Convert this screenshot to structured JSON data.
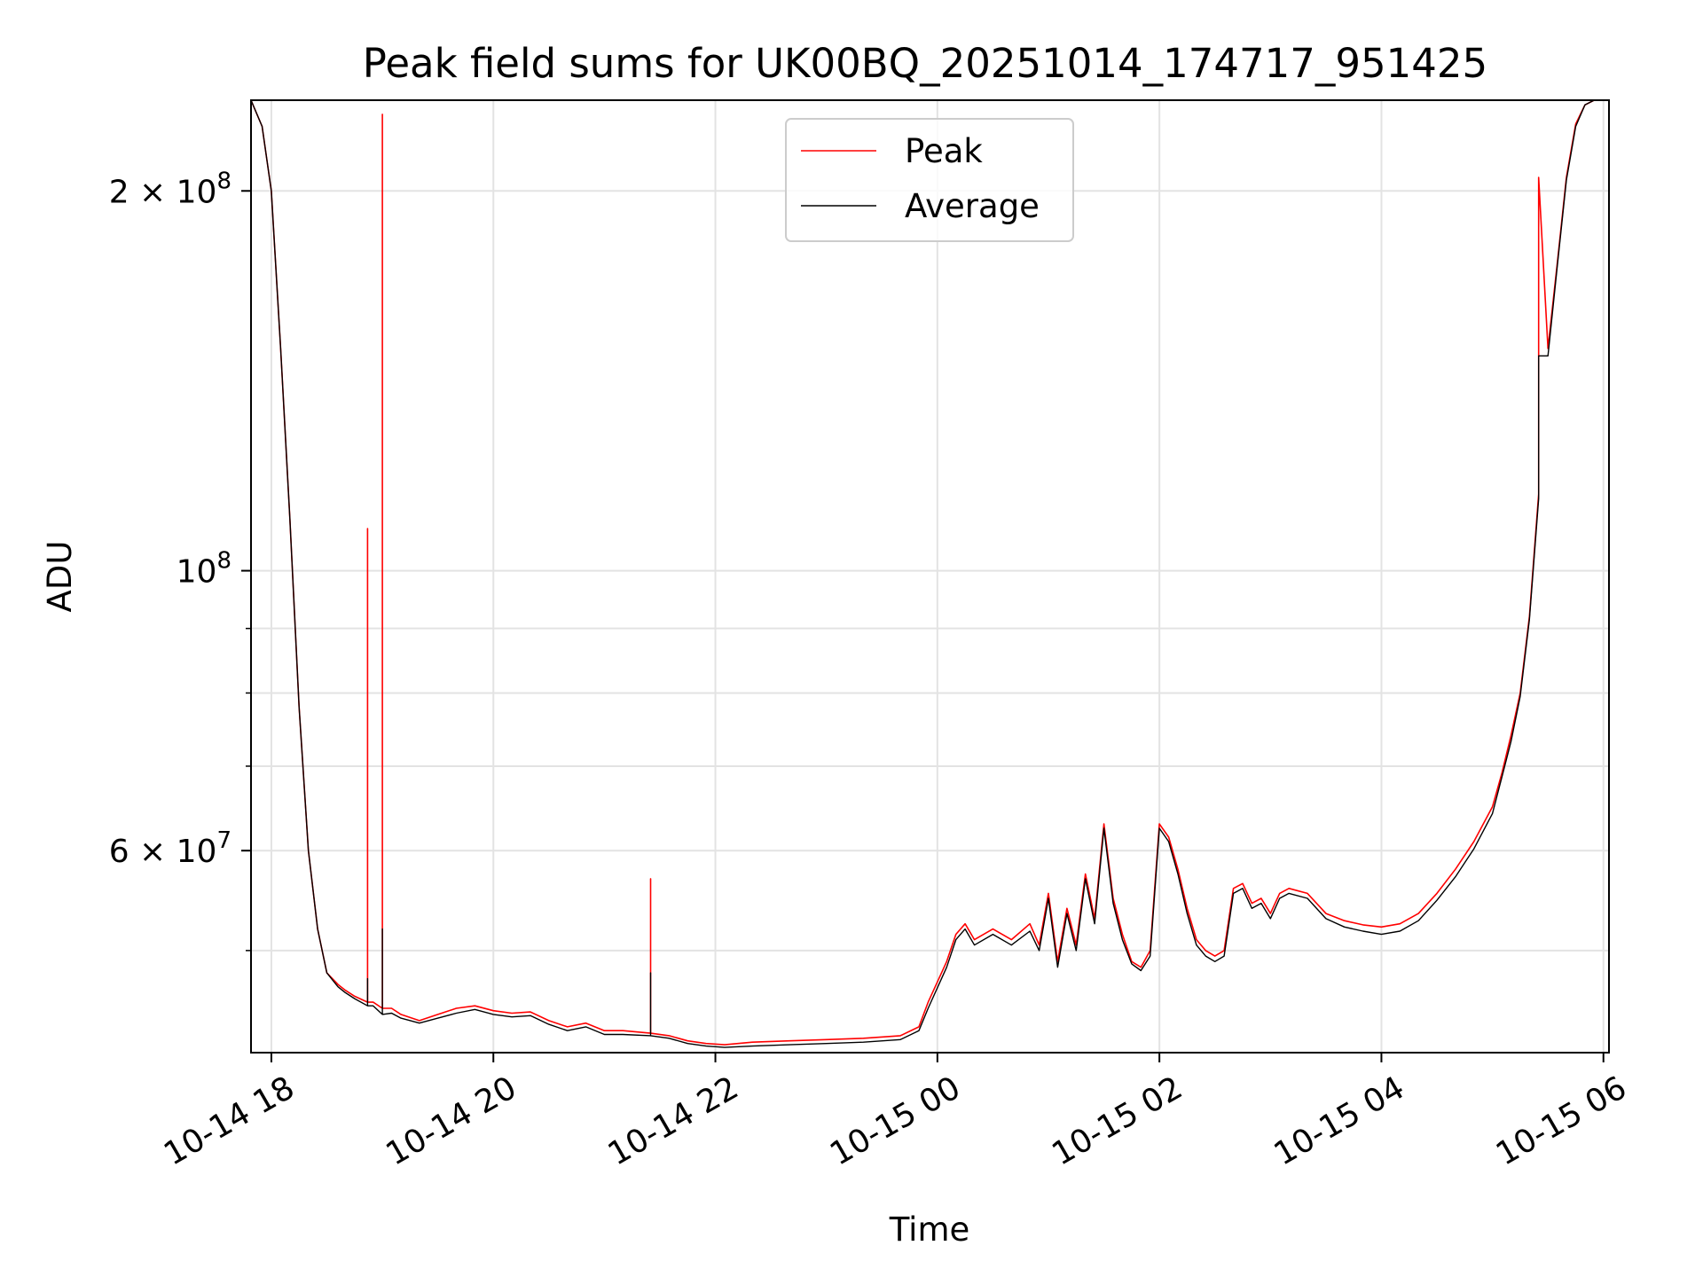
{
  "chart_data": {
    "type": "line",
    "title": "Peak field sums for UK00BQ_20251014_174717_951425",
    "xlabel": "Time",
    "ylabel": "ADU",
    "y_scale": "log",
    "xlim": [
      "2025-10-14 17:49",
      "2025-10-15 06:03"
    ],
    "ylim": [
      41500000,
      236000000
    ],
    "grid": true,
    "legend_position": "top-center",
    "x_ticks": [
      {
        "value": "2025-10-14 18:00",
        "label": "10-14 18"
      },
      {
        "value": "2025-10-14 20:00",
        "label": "10-14 20"
      },
      {
        "value": "2025-10-14 22:00",
        "label": "10-14 22"
      },
      {
        "value": "2025-10-15 00:00",
        "label": "10-15 00"
      },
      {
        "value": "2025-10-15 02:00",
        "label": "10-15 02"
      },
      {
        "value": "2025-10-15 04:00",
        "label": "10-15 04"
      },
      {
        "value": "2025-10-15 06:00",
        "label": "10-15 06"
      }
    ],
    "y_ticks": [
      {
        "value": 200000000,
        "mantissa": "2 × 10",
        "exp": "8"
      },
      {
        "value": 100000000,
        "mantissa": "10",
        "exp": "8"
      },
      {
        "value": 60000000,
        "mantissa": "6 × 10",
        "exp": "7"
      }
    ],
    "y_minor_ticks": [
      50000000,
      70000000,
      80000000,
      90000000
    ],
    "series": [
      {
        "name": "Peak",
        "color": "#ff0000",
        "x": [
          "2025-10-14 17:49",
          "2025-10-14 17:55",
          "2025-10-14 18:00",
          "2025-10-14 18:05",
          "2025-10-14 18:10",
          "2025-10-14 18:15",
          "2025-10-14 18:20",
          "2025-10-14 18:25",
          "2025-10-14 18:30",
          "2025-10-14 18:36",
          "2025-10-14 18:40",
          "2025-10-14 18:45",
          "2025-10-14 18:52",
          "2025-10-14 18:52",
          "2025-10-14 18:52",
          "2025-10-14 18:55",
          "2025-10-14 19:00",
          "2025-10-14 19:00",
          "2025-10-14 19:00",
          "2025-10-14 19:05",
          "2025-10-14 19:10",
          "2025-10-14 19:20",
          "2025-10-14 19:30",
          "2025-10-14 19:40",
          "2025-10-14 19:50",
          "2025-10-14 20:00",
          "2025-10-14 20:10",
          "2025-10-14 20:20",
          "2025-10-14 20:30",
          "2025-10-14 20:40",
          "2025-10-14 20:50",
          "2025-10-14 21:00",
          "2025-10-14 21:10",
          "2025-10-14 21:25",
          "2025-10-14 21:25",
          "2025-10-14 21:25",
          "2025-10-14 21:35",
          "2025-10-14 21:45",
          "2025-10-14 21:55",
          "2025-10-14 22:05",
          "2025-10-14 22:20",
          "2025-10-14 22:40",
          "2025-10-14 23:00",
          "2025-10-14 23:20",
          "2025-10-14 23:40",
          "2025-10-14 23:50",
          "2025-10-14 23:55",
          "2025-10-15 00:05",
          "2025-10-15 00:10",
          "2025-10-15 00:15",
          "2025-10-15 00:20",
          "2025-10-15 00:30",
          "2025-10-15 00:40",
          "2025-10-15 00:50",
          "2025-10-15 00:55",
          "2025-10-15 01:00",
          "2025-10-15 01:05",
          "2025-10-15 01:10",
          "2025-10-15 01:15",
          "2025-10-15 01:20",
          "2025-10-15 01:25",
          "2025-10-15 01:30",
          "2025-10-15 01:35",
          "2025-10-15 01:40",
          "2025-10-15 01:45",
          "2025-10-15 01:50",
          "2025-10-15 01:55",
          "2025-10-15 02:00",
          "2025-10-15 02:05",
          "2025-10-15 02:10",
          "2025-10-15 02:15",
          "2025-10-15 02:20",
          "2025-10-15 02:25",
          "2025-10-15 02:30",
          "2025-10-15 02:35",
          "2025-10-15 02:40",
          "2025-10-15 02:45",
          "2025-10-15 02:50",
          "2025-10-15 02:55",
          "2025-10-15 03:00",
          "2025-10-15 03:05",
          "2025-10-15 03:10",
          "2025-10-15 03:20",
          "2025-10-15 03:30",
          "2025-10-15 03:40",
          "2025-10-15 03:50",
          "2025-10-15 04:00",
          "2025-10-15 04:10",
          "2025-10-15 04:20",
          "2025-10-15 04:30",
          "2025-10-15 04:40",
          "2025-10-15 04:50",
          "2025-10-15 05:00",
          "2025-10-15 05:05",
          "2025-10-15 05:10",
          "2025-10-15 05:15",
          "2025-10-15 05:20",
          "2025-10-15 05:25",
          "2025-10-15 05:25",
          "2025-10-15 05:25",
          "2025-10-15 05:30",
          "2025-10-15 05:35",
          "2025-10-15 05:40",
          "2025-10-15 05:45",
          "2025-10-15 05:50",
          "2025-10-15 05:55",
          "2025-10-15 06:03"
        ],
        "values": [
          236000000,
          225000000,
          200000000,
          150000000,
          110000000,
          78000000,
          60000000,
          52000000,
          48000000,
          47000000,
          46500000,
          46000000,
          45500000,
          108000000,
          45500000,
          45500000,
          45000000,
          230000000,
          45000000,
          45000000,
          44500000,
          44000000,
          44500000,
          45000000,
          45200000,
          44800000,
          44600000,
          44700000,
          44000000,
          43500000,
          43800000,
          43200000,
          43200000,
          43000000,
          57000000,
          43000000,
          42800000,
          42400000,
          42200000,
          42100000,
          42300000,
          42400000,
          42500000,
          42600000,
          42800000,
          43500000,
          45500000,
          49000000,
          51500000,
          52500000,
          51000000,
          52000000,
          51000000,
          52500000,
          50500000,
          55500000,
          49000000,
          54000000,
          50500000,
          57500000,
          53000000,
          63000000,
          55000000,
          51500000,
          49000000,
          48500000,
          50000000,
          63000000,
          61500000,
          58000000,
          54000000,
          51000000,
          50000000,
          49500000,
          50000000,
          56000000,
          56500000,
          54500000,
          55000000,
          53500000,
          55500000,
          56000000,
          55500000,
          53500000,
          52800000,
          52400000,
          52200000,
          52500000,
          53500000,
          55500000,
          58000000,
          61000000,
          65000000,
          69000000,
          74000000,
          80000000,
          92000000,
          115000000,
          150000000,
          205000000,
          150000000,
          175000000,
          205000000,
          226000000,
          234000000,
          236000000,
          236000000
        ]
      },
      {
        "name": "Average",
        "color": "#000000",
        "x": [
          "2025-10-14 17:49",
          "2025-10-14 17:55",
          "2025-10-14 18:00",
          "2025-10-14 18:05",
          "2025-10-14 18:10",
          "2025-10-14 18:15",
          "2025-10-14 18:20",
          "2025-10-14 18:25",
          "2025-10-14 18:30",
          "2025-10-14 18:36",
          "2025-10-14 18:40",
          "2025-10-14 18:45",
          "2025-10-14 18:52",
          "2025-10-14 18:52",
          "2025-10-14 18:52",
          "2025-10-14 18:55",
          "2025-10-14 19:00",
          "2025-10-14 19:00",
          "2025-10-14 19:00",
          "2025-10-14 19:05",
          "2025-10-14 19:10",
          "2025-10-14 19:20",
          "2025-10-14 19:30",
          "2025-10-14 19:40",
          "2025-10-14 19:50",
          "2025-10-14 20:00",
          "2025-10-14 20:10",
          "2025-10-14 20:20",
          "2025-10-14 20:30",
          "2025-10-14 20:40",
          "2025-10-14 20:50",
          "2025-10-14 21:00",
          "2025-10-14 21:10",
          "2025-10-14 21:25",
          "2025-10-14 21:25",
          "2025-10-14 21:25",
          "2025-10-14 21:35",
          "2025-10-14 21:45",
          "2025-10-14 21:55",
          "2025-10-14 22:05",
          "2025-10-14 22:20",
          "2025-10-14 22:40",
          "2025-10-14 23:00",
          "2025-10-14 23:20",
          "2025-10-14 23:40",
          "2025-10-14 23:50",
          "2025-10-14 23:55",
          "2025-10-15 00:05",
          "2025-10-15 00:10",
          "2025-10-15 00:15",
          "2025-10-15 00:20",
          "2025-10-15 00:30",
          "2025-10-15 00:40",
          "2025-10-15 00:50",
          "2025-10-15 00:55",
          "2025-10-15 01:00",
          "2025-10-15 01:05",
          "2025-10-15 01:10",
          "2025-10-15 01:15",
          "2025-10-15 01:20",
          "2025-10-15 01:25",
          "2025-10-15 01:30",
          "2025-10-15 01:35",
          "2025-10-15 01:40",
          "2025-10-15 01:45",
          "2025-10-15 01:50",
          "2025-10-15 01:55",
          "2025-10-15 02:00",
          "2025-10-15 02:05",
          "2025-10-15 02:10",
          "2025-10-15 02:15",
          "2025-10-15 02:20",
          "2025-10-15 02:25",
          "2025-10-15 02:30",
          "2025-10-15 02:35",
          "2025-10-15 02:40",
          "2025-10-15 02:45",
          "2025-10-15 02:50",
          "2025-10-15 02:55",
          "2025-10-15 03:00",
          "2025-10-15 03:05",
          "2025-10-15 03:10",
          "2025-10-15 03:20",
          "2025-10-15 03:30",
          "2025-10-15 03:40",
          "2025-10-15 03:50",
          "2025-10-15 04:00",
          "2025-10-15 04:10",
          "2025-10-15 04:20",
          "2025-10-15 04:30",
          "2025-10-15 04:40",
          "2025-10-15 04:50",
          "2025-10-15 05:00",
          "2025-10-15 05:05",
          "2025-10-15 05:10",
          "2025-10-15 05:15",
          "2025-10-15 05:20",
          "2025-10-15 05:25",
          "2025-10-15 05:25",
          "2025-10-15 05:25",
          "2025-10-15 05:30",
          "2025-10-15 05:35",
          "2025-10-15 05:40",
          "2025-10-15 05:45",
          "2025-10-15 05:50",
          "2025-10-15 05:55",
          "2025-10-15 06:03"
        ],
        "values": [
          236000000,
          225000000,
          200000000,
          150000000,
          110000000,
          78000000,
          60000000,
          52000000,
          48000000,
          46800000,
          46300000,
          45800000,
          45200000,
          47500000,
          45200000,
          45200000,
          44500000,
          52000000,
          44500000,
          44600000,
          44200000,
          43800000,
          44200000,
          44600000,
          44900000,
          44500000,
          44300000,
          44400000,
          43700000,
          43200000,
          43500000,
          42900000,
          42900000,
          42800000,
          48000000,
          42800000,
          42600000,
          42200000,
          42000000,
          41900000,
          42000000,
          42100000,
          42200000,
          42300000,
          42500000,
          43200000,
          45000000,
          48500000,
          51000000,
          52000000,
          50500000,
          51500000,
          50500000,
          51800000,
          50000000,
          55000000,
          48500000,
          53500000,
          50000000,
          57000000,
          52500000,
          62500000,
          54500000,
          51000000,
          48800000,
          48200000,
          49500000,
          62500000,
          61000000,
          57500000,
          53500000,
          50500000,
          49500000,
          49000000,
          49500000,
          55500000,
          56000000,
          54000000,
          54500000,
          53000000,
          55000000,
          55500000,
          55000000,
          53000000,
          52200000,
          51800000,
          51500000,
          51800000,
          52800000,
          54800000,
          57200000,
          60200000,
          64200000,
          68500000,
          73200000,
          79500000,
          91500000,
          114000000,
          148000000,
          148000000,
          148000000,
          174000000,
          204000000,
          225000000,
          234000000,
          236000000,
          236000000
        ]
      }
    ]
  }
}
